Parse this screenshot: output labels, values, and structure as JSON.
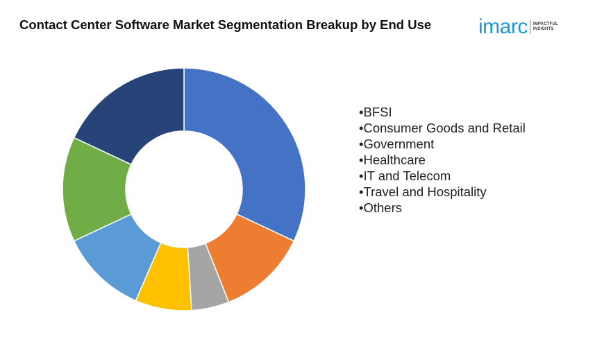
{
  "chart_data": {
    "type": "pie",
    "title": "Contact Center Software Market Segmentation Breakup by End Use",
    "categories": [
      "BFSI",
      "Consumer Goods and Retail",
      "Government",
      "Healthcare",
      "IT and Telecom",
      "Travel and Hospitality",
      "Others"
    ],
    "values": [
      32,
      12,
      5,
      7.5,
      11.5,
      14,
      18
    ],
    "series_order_drawn": [
      "BFSI",
      "Consumer Goods and Retail",
      "Government",
      "Healthcare",
      "IT and Telecom",
      "Travel and Hospitality",
      "Others"
    ],
    "colors": [
      "#4472c4",
      "#ed7d31",
      "#a5a5a5",
      "#ffc000",
      "#5b9bd5",
      "#70ad47",
      "#264478"
    ],
    "donut": true,
    "legend_position": "right"
  },
  "logo": {
    "word": "imarc",
    "tag_line1": "IMPACTFUL",
    "tag_line2": "INSIGHTS"
  },
  "legend_prefix": "•"
}
